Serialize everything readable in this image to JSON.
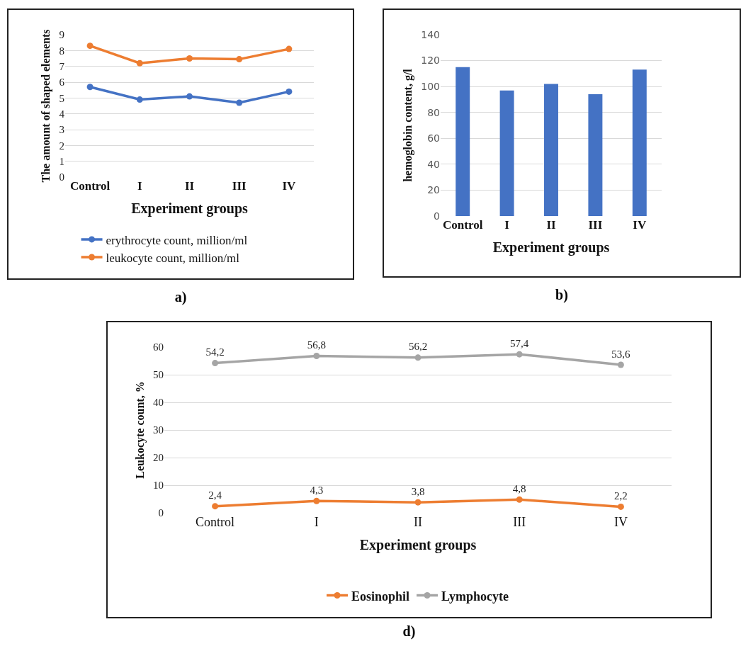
{
  "chart_data": [
    {
      "type": "line",
      "categories": [
        "Control",
        "I",
        "II",
        "III",
        "IV"
      ],
      "xlabel": "Experiment groups",
      "ylabel": "The amount of shaped elements",
      "ylim": [
        0,
        9
      ],
      "yticks": [
        0,
        1,
        2,
        3,
        4,
        5,
        6,
        7,
        8,
        9
      ],
      "grid": "y",
      "legend": "bottom",
      "marker": "circle",
      "line_style": "solid",
      "series": [
        {
          "name": "erythrocyte count, million/ml",
          "color": "#4472c4",
          "values": [
            5.7,
            4.9,
            5.1,
            4.7,
            5.4
          ]
        },
        {
          "name": "leukocyte count, million/ml",
          "color": "#ed7d31",
          "values": [
            8.3,
            7.2,
            7.5,
            7.45,
            8.1
          ]
        }
      ],
      "annotations": [
        "a)"
      ]
    },
    {
      "type": "bar",
      "categories": [
        "Control",
        "I",
        "II",
        "III",
        "IV"
      ],
      "xlabel": "Experiment groups",
      "ylabel": "hemoglobin content, g/l",
      "ylim": [
        0,
        140
      ],
      "yticks": [
        0,
        20,
        40,
        60,
        80,
        100,
        120,
        140
      ],
      "grid": "y",
      "series": [
        {
          "color": "#4472c4",
          "values": [
            115,
            97,
            102,
            94,
            113
          ]
        }
      ],
      "annotations": [
        "b)"
      ]
    },
    {
      "type": "line",
      "categories": [
        "Control",
        "I",
        "II",
        "III",
        "IV"
      ],
      "xlabel": "Experiment groups",
      "ylabel": "Leukocyte count, %",
      "ylim": [
        0,
        60
      ],
      "yticks": [
        0,
        10,
        20,
        30,
        40,
        50,
        60
      ],
      "grid": "y",
      "legend": "bottom",
      "marker": "circle",
      "line_style": "solid",
      "series": [
        {
          "name": "Eosinophil",
          "color": "#ed7d31",
          "values": [
            2.4,
            4.3,
            3.8,
            4.8,
            2.2
          ],
          "value_labels": [
            "2,4",
            "4,3",
            "3,8",
            "4,8",
            "2,2"
          ]
        },
        {
          "name": "Lymphocyte",
          "color": "#a5a5a5",
          "values": [
            54.2,
            56.8,
            56.2,
            57.4,
            53.6
          ],
          "value_labels": [
            "54,2",
            "56,8",
            "56,2",
            "57,4",
            "53,6"
          ]
        }
      ],
      "annotations": [
        "d)"
      ]
    }
  ]
}
